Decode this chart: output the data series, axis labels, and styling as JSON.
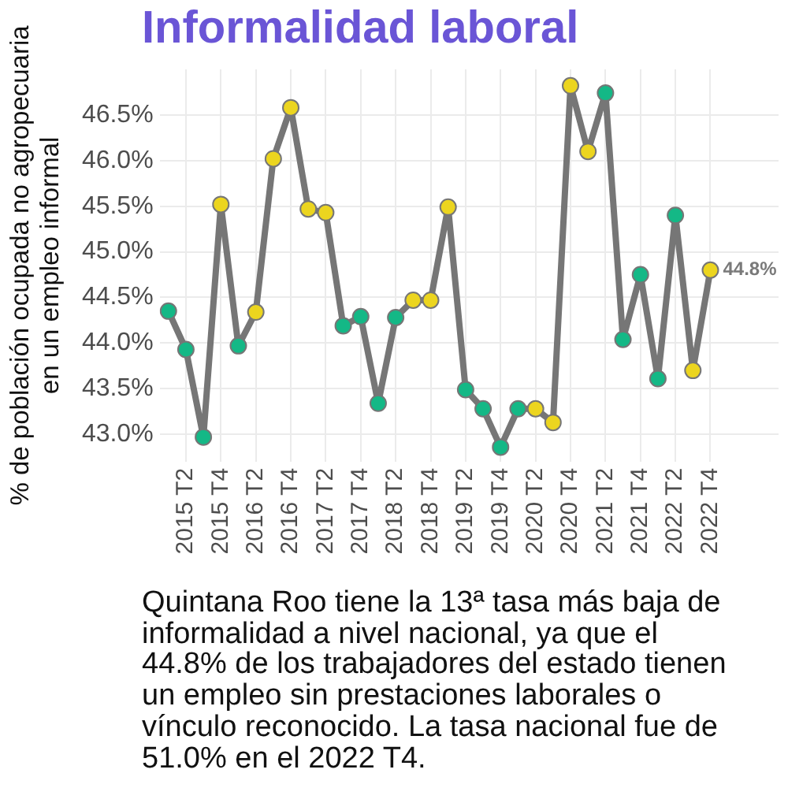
{
  "chart_data": {
    "type": "line",
    "title": "Informalidad laboral",
    "ylabel": "% de población ocupada no agropecuaria\nen un empleo informal",
    "categories": [
      null,
      "2015 T2",
      null,
      "2015 T4",
      null,
      "2016 T2",
      null,
      "2016 T4",
      null,
      "2017 T2",
      null,
      "2017 T4",
      null,
      "2018 T2",
      null,
      "2018 T4",
      null,
      "2019 T2",
      null,
      "2019 T4",
      null,
      "2020 T2",
      null,
      "2020 T4",
      null,
      "2021 T2",
      null,
      "2021 T4",
      null,
      "2022 T2",
      null,
      "2022 T4"
    ],
    "series": [
      {
        "color": "#767676",
        "colors": [
          "#14b886",
          "#14b886",
          "#14b886",
          "#ecd51f",
          "#14b886",
          "#ecd51f",
          "#ecd51f",
          "#ecd51f",
          "#ecd51f",
          "#ecd51f",
          "#14b886",
          "#14b886",
          "#14b886",
          "#14b886",
          "#ecd51f",
          "#ecd51f",
          "#ecd51f",
          "#14b886",
          "#14b886",
          "#14b886",
          "#14b886",
          "#ecd51f",
          "#ecd51f",
          "#ecd51f",
          "#ecd51f",
          "#14b886",
          "#14b886",
          "#14b886",
          "#14b886",
          "#14b886",
          "#ecd51f",
          "#ecd51f"
        ],
        "values": [
          44.35,
          43.93,
          42.97,
          45.52,
          43.97,
          44.34,
          46.02,
          46.58,
          45.47,
          45.43,
          44.19,
          44.29,
          43.34,
          44.28,
          44.47,
          44.47,
          45.49,
          43.49,
          43.28,
          42.86,
          43.28,
          43.28,
          43.13,
          46.82,
          46.1,
          46.74,
          44.04,
          44.75,
          43.61,
          45.4,
          43.7,
          44.8
        ],
        "value_labels": [
          null,
          null,
          null,
          null,
          null,
          null,
          null,
          null,
          null,
          null,
          null,
          null,
          null,
          null,
          null,
          null,
          null,
          null,
          null,
          null,
          null,
          null,
          null,
          null,
          null,
          null,
          null,
          null,
          null,
          null,
          null,
          "44.8%"
        ]
      }
    ],
    "ylim": [
      42.7,
      47.0
    ],
    "yticks": [
      {
        "value": 43,
        "label": "43.0%"
      },
      {
        "value": 43.5,
        "label": "43.5%"
      },
      {
        "value": 44,
        "label": "44.0%"
      },
      {
        "value": 44.5,
        "label": "44.5%"
      },
      {
        "value": 45,
        "label": "45.0%"
      },
      {
        "value": 45.5,
        "label": "45.5%"
      },
      {
        "value": 46,
        "label": "46.0%"
      },
      {
        "value": 46.5,
        "label": "46.5%"
      }
    ],
    "grid": true,
    "marker": "circle",
    "annotations": [
      "Quintana Roo tiene la 13ª tasa más baja de informalidad a nivel nacional, ya que el 44.8% de los trabajadores del estado tienen un empleo sin prestaciones laborales o vínculo reconocido. La tasa nacional fue de 51.0% en el 2022 T4."
    ]
  }
}
